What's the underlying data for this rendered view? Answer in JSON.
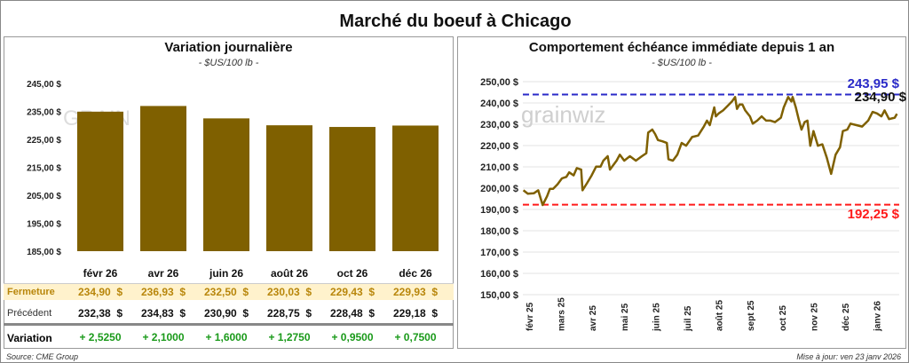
{
  "title": "Marché du boeuf à Chicago",
  "left": {
    "subtitle": "Variation journalière",
    "unit": "- $US/100 lb -",
    "row_labels": {
      "close": "Fermeture",
      "previous": "Précédent",
      "change": "Variation"
    },
    "close": [
      "234,90  $",
      "236,93  $",
      "232,50  $",
      "230,03  $",
      "229,43  $",
      "229,93  $"
    ],
    "previous": [
      "232,38  $",
      "234,83  $",
      "230,90  $",
      "228,75  $",
      "228,48  $",
      "229,18  $"
    ],
    "change": [
      "+ 2,5250",
      "+ 2,1000",
      "+ 1,6000",
      "+ 1,2750",
      "+ 0,9500",
      "+ 0,7500"
    ],
    "source": "Source: CME Group"
  },
  "right": {
    "subtitle": "Comportement échéance immédiate depuis 1 an",
    "unit": "- $US/100 lb -",
    "updated": "Mise à jour: ven 23 janv 2026",
    "watermark": "grainwiz"
  },
  "colors": {
    "bar": "#7f6000",
    "line": "#7f6000",
    "max": "#2a2ac8",
    "min": "#ff1a1a",
    "up": "#1a9a1a",
    "close_bg": "#fff2cc",
    "close_text": "#b8860b"
  },
  "chart_data": [
    {
      "type": "bar",
      "title": "Variation journalière",
      "categories": [
        "févr 26",
        "avr 26",
        "juin 26",
        "août 26",
        "oct 26",
        "déc 26"
      ],
      "values": [
        234.9,
        236.93,
        232.5,
        230.03,
        229.43,
        229.93
      ],
      "ylim": [
        185,
        245
      ],
      "yticks": [
        "185,00 $",
        "195,00 $",
        "205,00 $",
        "215,00 $",
        "225,00 $",
        "235,00 $",
        "245,00 $"
      ],
      "ytick_values": [
        185,
        195,
        205,
        215,
        225,
        235,
        245
      ]
    },
    {
      "type": "line",
      "title": "Comportement échéance immédiate depuis 1 an",
      "ylim": [
        150,
        250
      ],
      "yticks": [
        "150,00 $",
        "160,00 $",
        "170,00 $",
        "180,00 $",
        "190,00 $",
        "200,00 $",
        "210,00 $",
        "220,00 $",
        "230,00 $",
        "240,00 $",
        "250,00 $"
      ],
      "ytick_values": [
        150,
        160,
        170,
        180,
        190,
        200,
        210,
        220,
        230,
        240,
        250
      ],
      "xticks": [
        "févr 25",
        "mars 25",
        "avr 25",
        "mai 25",
        "juin 25",
        "juil 25",
        "août 25",
        "sept 25",
        "oct 25",
        "nov 25",
        "déc 25",
        "janv 26"
      ],
      "x_unit": "months since févr 25",
      "points": [
        [
          -0.18,
          199.0
        ],
        [
          -0.04,
          197.4
        ],
        [
          0.15,
          197.6
        ],
        [
          0.29,
          199.0
        ],
        [
          0.43,
          192.1
        ],
        [
          0.57,
          196.2
        ],
        [
          0.66,
          199.7
        ],
        [
          0.76,
          199.7
        ],
        [
          0.9,
          201.8
        ],
        [
          1.04,
          204.6
        ],
        [
          1.18,
          205.3
        ],
        [
          1.27,
          207.4
        ],
        [
          1.41,
          206.0
        ],
        [
          1.51,
          209.4
        ],
        [
          1.65,
          208.7
        ],
        [
          1.69,
          199.0
        ],
        [
          1.84,
          202.5
        ],
        [
          1.98,
          206.0
        ],
        [
          2.12,
          210.1
        ],
        [
          2.26,
          210.1
        ],
        [
          2.35,
          212.9
        ],
        [
          2.49,
          215.0
        ],
        [
          2.56,
          208.7
        ],
        [
          2.77,
          212.9
        ],
        [
          2.87,
          215.7
        ],
        [
          3.01,
          212.9
        ],
        [
          3.19,
          215.0
        ],
        [
          3.38,
          212.9
        ],
        [
          3.57,
          215.0
        ],
        [
          3.71,
          216.4
        ],
        [
          3.77,
          226.1
        ],
        [
          3.9,
          227.5
        ],
        [
          3.99,
          225.4
        ],
        [
          4.08,
          222.6
        ],
        [
          4.22,
          222.0
        ],
        [
          4.36,
          221.2
        ],
        [
          4.41,
          213.6
        ],
        [
          4.55,
          212.9
        ],
        [
          4.69,
          215.7
        ],
        [
          4.83,
          221.2
        ],
        [
          4.97,
          219.9
        ],
        [
          5.16,
          224.0
        ],
        [
          5.35,
          224.7
        ],
        [
          5.53,
          228.9
        ],
        [
          5.63,
          231.7
        ],
        [
          5.72,
          229.6
        ],
        [
          5.86,
          237.9
        ],
        [
          5.91,
          233.7
        ],
        [
          6.0,
          235.1
        ],
        [
          6.14,
          236.5
        ],
        [
          6.28,
          238.6
        ],
        [
          6.42,
          240.7
        ],
        [
          6.52,
          242.8
        ],
        [
          6.58,
          237.2
        ],
        [
          6.66,
          239.3
        ],
        [
          6.75,
          239.3
        ],
        [
          6.84,
          236.5
        ],
        [
          6.99,
          233.7
        ],
        [
          7.08,
          230.3
        ],
        [
          7.22,
          231.7
        ],
        [
          7.36,
          233.7
        ],
        [
          7.5,
          231.7
        ],
        [
          7.64,
          231.7
        ],
        [
          7.78,
          231.0
        ],
        [
          7.97,
          233.1
        ],
        [
          8.06,
          237.9
        ],
        [
          8.2,
          242.8
        ],
        [
          8.3,
          240.7
        ],
        [
          8.34,
          242.8
        ],
        [
          8.44,
          237.9
        ],
        [
          8.53,
          232.4
        ],
        [
          8.62,
          227.5
        ],
        [
          8.72,
          231.0
        ],
        [
          8.81,
          231.7
        ],
        [
          8.9,
          219.9
        ],
        [
          9.0,
          226.8
        ],
        [
          9.14,
          219.9
        ],
        [
          9.28,
          220.6
        ],
        [
          9.42,
          214.3
        ],
        [
          9.56,
          206.7
        ],
        [
          9.7,
          215.7
        ],
        [
          9.84,
          219.2
        ],
        [
          9.93,
          226.8
        ],
        [
          10.07,
          227.5
        ],
        [
          10.17,
          230.3
        ],
        [
          10.36,
          229.6
        ],
        [
          10.54,
          228.9
        ],
        [
          10.73,
          231.7
        ],
        [
          10.87,
          235.8
        ],
        [
          11.01,
          235.1
        ],
        [
          11.15,
          233.7
        ],
        [
          11.25,
          236.5
        ],
        [
          11.39,
          232.4
        ],
        [
          11.57,
          233.1
        ],
        [
          11.64,
          234.9
        ]
      ],
      "max": {
        "value": 243.95,
        "label": "243,95 $"
      },
      "min": {
        "value": 192.25,
        "label": "192,25 $"
      },
      "last": {
        "value": 234.9,
        "label": "234,90 $"
      }
    }
  ]
}
